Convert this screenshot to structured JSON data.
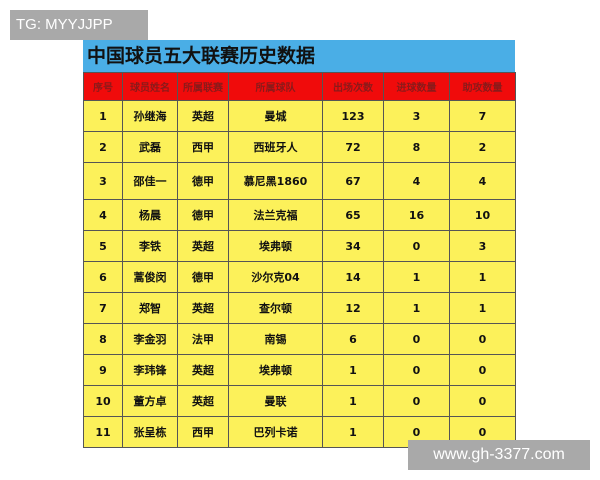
{
  "watermarks": {
    "top_left": "TG: MYYJJPP",
    "bottom_right": "www.gh-3377.com"
  },
  "title": "中国球员五大联赛历史数据",
  "colors": {
    "title_bg": "#4aaee6",
    "header_bg": "#f00b0b",
    "row_bg": "#fcf15a"
  },
  "headers": [
    "序号",
    "球员姓名",
    "所属联赛",
    "所属球队",
    "出场次数",
    "进球数量",
    "助攻数量"
  ],
  "rows": [
    [
      "1",
      "孙继海",
      "英超",
      "曼城",
      "123",
      "3",
      "7"
    ],
    [
      "2",
      "武磊",
      "西甲",
      "西班牙人",
      "72",
      "8",
      "2"
    ],
    [
      "3",
      "邵佳一",
      "德甲",
      "慕尼黑1860",
      "67",
      "4",
      "4"
    ],
    [
      "4",
      "杨晨",
      "德甲",
      "法兰克福",
      "65",
      "16",
      "10"
    ],
    [
      "5",
      "李铁",
      "英超",
      "埃弗顿",
      "34",
      "0",
      "3"
    ],
    [
      "6",
      "蒿俊闵",
      "德甲",
      "沙尔克04",
      "14",
      "1",
      "1"
    ],
    [
      "7",
      "郑智",
      "英超",
      "查尔顿",
      "12",
      "1",
      "1"
    ],
    [
      "8",
      "李金羽",
      "法甲",
      "南锡",
      "6",
      "0",
      "0"
    ],
    [
      "9",
      "李玮锋",
      "英超",
      "埃弗顿",
      "1",
      "0",
      "0"
    ],
    [
      "10",
      "董方卓",
      "英超",
      "曼联",
      "1",
      "0",
      "0"
    ],
    [
      "11",
      "张呈栋",
      "西甲",
      "巴列卡诺",
      "1",
      "0",
      "0"
    ]
  ]
}
